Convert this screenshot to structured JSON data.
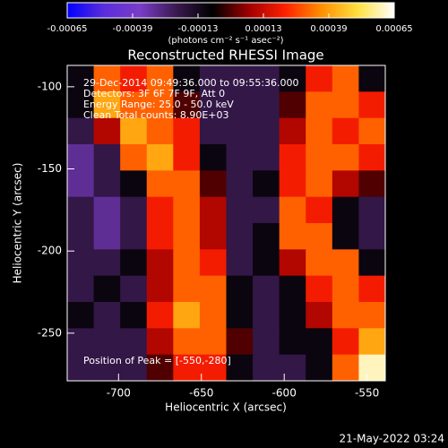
{
  "chart_data": {
    "type": "heatmap",
    "title": "Reconstructed RHESSI Image",
    "colorbar_label": "(photons cm⁻² s⁻¹ asec⁻²)",
    "clim": [
      -0.00065,
      0.00065
    ],
    "cticks": [
      -0.00065,
      -0.00039,
      -0.00013,
      0.00013,
      0.00039,
      0.00065
    ],
    "colorscale": [
      "#0000ff",
      "#5a2ddc",
      "#7a3cc8",
      "#3a1a50",
      "#000000",
      "#a00000",
      "#ff2000",
      "#ff9000",
      "#ffe040",
      "#ffffff"
    ],
    "x_label": "Heliocentric X (arcsec)",
    "y_label": "Heliocentric Y (arcsec)",
    "xlim": [
      -731,
      -539
    ],
    "ylim": [
      -279,
      -87
    ],
    "xticks": [
      -700,
      -650,
      -600,
      -550
    ],
    "yticks": [
      -250,
      -200,
      -150,
      -100
    ],
    "annotations": [
      "29-Dec-2014 09:49:36.000 to 09:55:36.000",
      "Detectors: 3F 6F 7F 9F, Att 0",
      "Energy Range: 25.0 - 50.0 keV",
      "Clean     Total counts: 8.90E+03"
    ],
    "peak_label": "Position of Peak = [-550,-280]",
    "timestamp": "21-May-2022 03:24",
    "z": [
      [
        -0.0001,
        0.0003,
        0.0002,
        0.0003,
        -0.0001,
        -0.0002,
        -0.0002,
        -0.0002,
        -0.0001,
        0.0002,
        0.0003,
        -0.0001
      ],
      [
        -0.0001,
        0.0004,
        0.0003,
        0.0003,
        0,
        -0.0002,
        -0.0002,
        -0.0002,
        0,
        0.0003,
        0.0003,
        0.0002
      ],
      [
        -0.0002,
        0.0001,
        0.0004,
        0.0003,
        0.0002,
        -0.0002,
        -0.0002,
        -0.0002,
        0.0001,
        0.0003,
        0.0002,
        0.0003
      ],
      [
        -0.0003,
        -0.0002,
        0.0003,
        0.0004,
        0.0002,
        -0.0001,
        -0.0002,
        -0.0002,
        0.0002,
        0.0003,
        0.0003,
        0.0002
      ],
      [
        -0.0003,
        -0.0002,
        -0.0001,
        0.0003,
        0.0003,
        0,
        -0.0002,
        -0.0001,
        0.0002,
        0.0003,
        0.0001,
        0
      ],
      [
        -0.0002,
        -0.0003,
        -0.0002,
        0.0002,
        0.0003,
        0.0001,
        -0.0002,
        -0.0002,
        0.0003,
        0.0002,
        -0.0001,
        -0.0002
      ],
      [
        -0.0002,
        -0.0003,
        -0.0002,
        0.0002,
        0.0003,
        0.0001,
        -0.0002,
        -0.0001,
        0.0003,
        0.0003,
        -0.0001,
        -0.0002
      ],
      [
        -0.0002,
        -0.0002,
        -0.0001,
        0.0001,
        0.0003,
        0.0002,
        -0.0002,
        -0.0001,
        0.0001,
        0.0003,
        0.0003,
        -0.0001
      ],
      [
        -0.0002,
        -0.0001,
        -0.0002,
        0.0001,
        0.0003,
        0.0003,
        -0.0001,
        -0.0002,
        -0.0001,
        0.0002,
        0.0003,
        0.0002
      ],
      [
        -0.0001,
        -0.0002,
        -0.0001,
        0.0002,
        0.0004,
        0.0003,
        -0.0001,
        -0.0002,
        -0.0001,
        0.0001,
        0.0003,
        0.0003
      ],
      [
        -0.0002,
        -0.0002,
        -0.0002,
        0.0001,
        0.0003,
        0.0003,
        0,
        -0.0002,
        -0.0001,
        -0.0001,
        0.0002,
        0.0004
      ],
      [
        -0.0002,
        -0.0002,
        -0.0002,
        0,
        0.0002,
        0.0002,
        -0.0001,
        -0.0002,
        -0.0002,
        -0.0001,
        0.0003,
        0.0006
      ]
    ]
  }
}
